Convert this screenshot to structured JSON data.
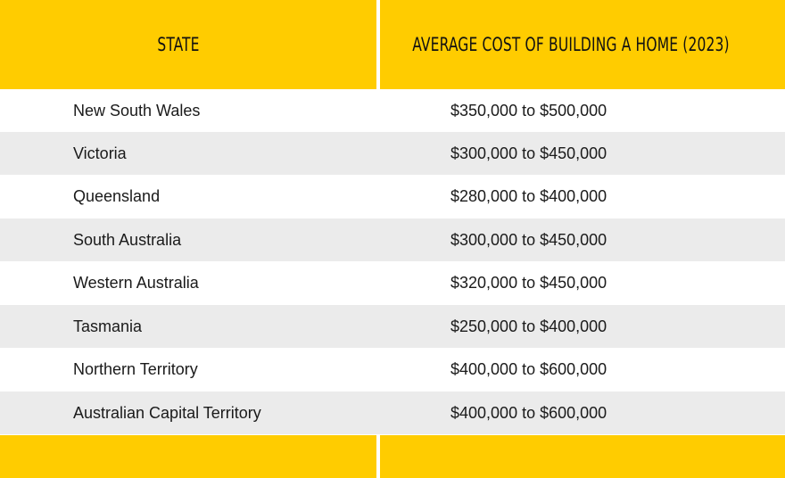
{
  "colors": {
    "header": "#ffcc00",
    "row_alt": "#ebebeb",
    "row": "#ffffff",
    "text": "#1a1a1a"
  },
  "table": {
    "headers": [
      "STATE",
      "AVERAGE COST OF BUILDING A HOME (2023)"
    ],
    "rows": [
      {
        "state": "New South Wales",
        "cost": "$350,000 to $500,000"
      },
      {
        "state": "Victoria",
        "cost": "$300,000 to $450,000"
      },
      {
        "state": "Queensland",
        "cost": "$280,000 to $400,000"
      },
      {
        "state": "South Australia",
        "cost": "$300,000 to $450,000"
      },
      {
        "state": "Western Australia",
        "cost": "$320,000 to $450,000"
      },
      {
        "state": "Tasmania",
        "cost": "$250,000 to $400,000"
      },
      {
        "state": "Northern Territory",
        "cost": "$400,000 to $600,000"
      },
      {
        "state": "Australian Capital Territory",
        "cost": "$400,000 to $600,000"
      }
    ]
  }
}
